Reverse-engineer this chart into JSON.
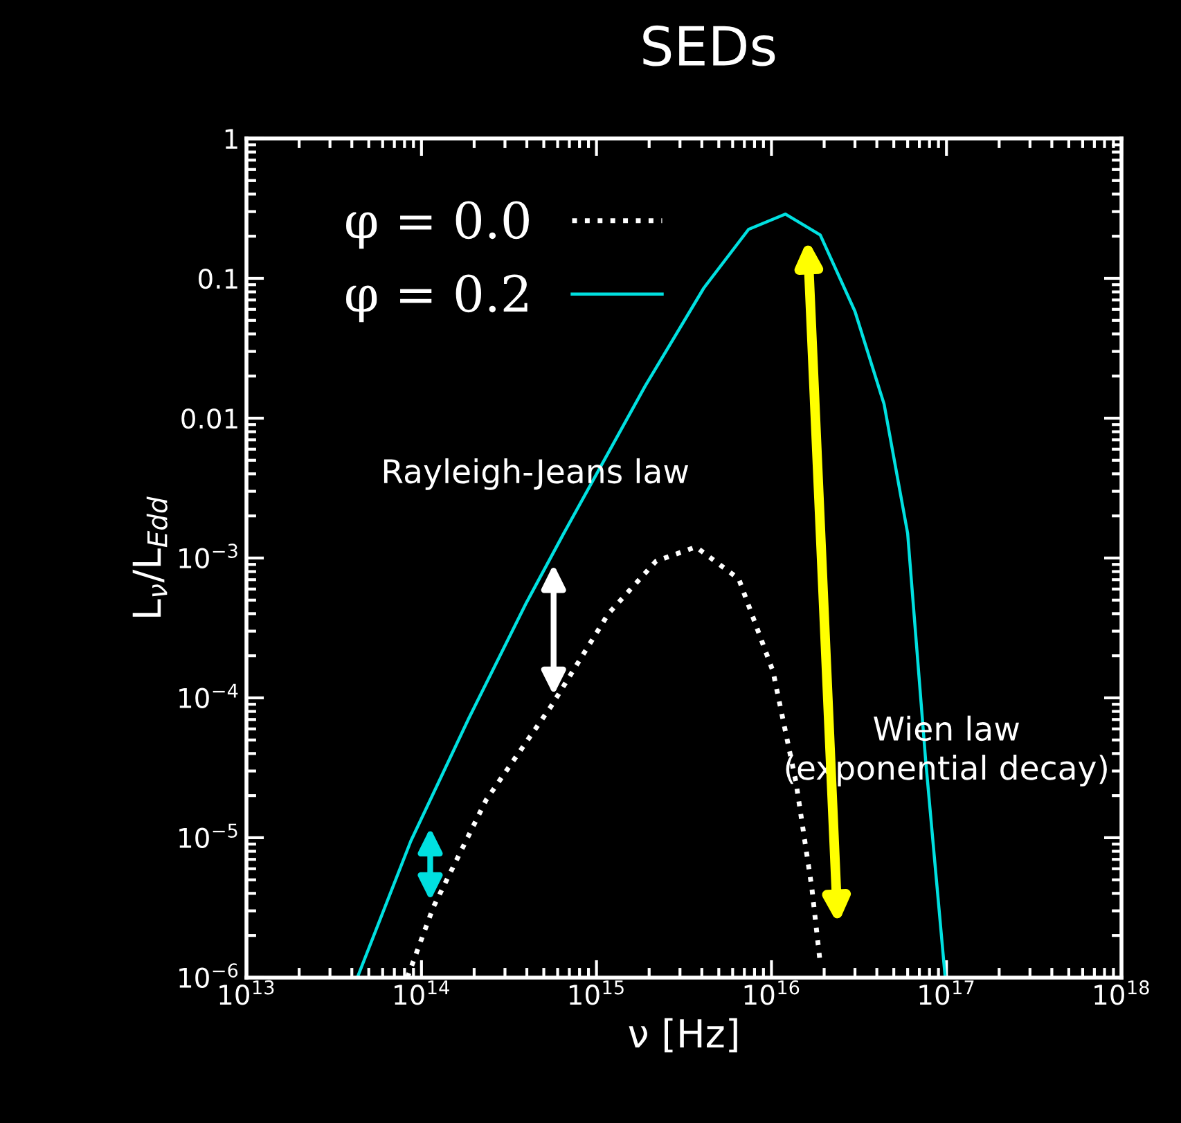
{
  "chart_data": {
    "type": "line",
    "title": "SEDs",
    "xlabel": "ν [Hz]",
    "ylabel": "L$_{ν}$/L$_{Edd}$",
    "log": "xy",
    "xlim": [
      10000000000000.0,
      1e+18
    ],
    "ylim": [
      1e-06,
      1
    ],
    "xticks": [
      {
        "value": 10000000000000.0,
        "label": "10$^{13}$"
      },
      {
        "value": 100000000000000.0,
        "label": "10$^{14}$"
      },
      {
        "value": 1000000000000000.0,
        "label": "10$^{15}$"
      },
      {
        "value": 1e+16,
        "label": "10$^{16}$"
      },
      {
        "value": 1e+17,
        "label": "10$^{17}$"
      },
      {
        "value": 1e+18,
        "label": "10$^{18}$"
      }
    ],
    "yticks": [
      {
        "value": 1e-06,
        "label": "10$^{−6}$"
      },
      {
        "value": 1e-05,
        "label": "10$^{−5}$"
      },
      {
        "value": 0.0001,
        "label": "10$^{−4}$"
      },
      {
        "value": 0.001,
        "label": "10$^{−3}$"
      },
      {
        "value": 0.01,
        "label": "0.01"
      },
      {
        "value": 0.1,
        "label": "0.1"
      },
      {
        "value": 1,
        "label": "1"
      }
    ],
    "legend": "top left",
    "grid": false,
    "annotations": [
      "Rayleigh-Jeans law",
      "Wien law\n(exponential decay)"
    ],
    "series": [
      {
        "name": "φ = 0.0",
        "color": "#ffffff",
        "line_style": "dotted",
        "x": [
          83000000000000.0,
          117000000000000.0,
          234000000000000.0,
          550000000000000.0,
          1170000000000000.0,
          2190000000000000.0,
          3700000000000000.0,
          6500000000000000.0,
          1.02e+16,
          1.38e+16,
          1.7e+16,
          1.9e+16
        ],
        "values": [
          1e-06,
          3.2e-06,
          1.86e-05,
          8.7e-05,
          0.0004,
          0.00095,
          0.0012,
          0.00071,
          0.000155,
          2.5e-05,
          4.4e-06,
          1.26e-06
        ]
      },
      {
        "name": "φ = 0.2",
        "color": "#00e0e0",
        "line_style": "solid",
        "x": [
          43000000000000.0,
          87000000000000.0,
          186000000000000.0,
          398000000000000.0,
          650000000000000.0,
          1900000000000000.0,
          4100000000000000.0,
          7400000000000000.0,
          1.2e+16,
          1.9e+16,
          3e+16,
          4.4e+16,
          6e+16,
          7.6e+16,
          9.8e+16
        ],
        "values": [
          1e-06,
          9.5e-06,
          7.1e-05,
          0.00048,
          0.0015,
          0.017,
          0.085,
          0.224,
          0.288,
          0.204,
          0.058,
          0.0126,
          0.0015,
          3.6e-05,
          1.05e-06
        ]
      }
    ]
  }
}
